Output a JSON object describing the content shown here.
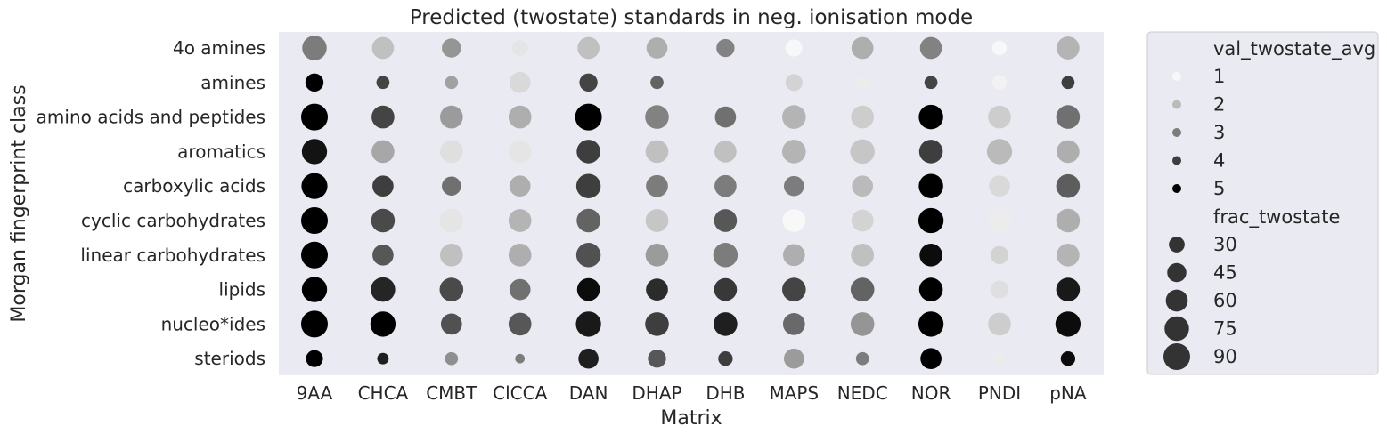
{
  "chart_data": {
    "type": "scatter",
    "title": "Predicted (twostate) standards in neg. ionisation mode",
    "xlabel": "Matrix",
    "ylabel": "Morgan fingerprint class",
    "x_categories": [
      "9AA",
      "CHCA",
      "CMBT",
      "ClCCA",
      "DAN",
      "DHAP",
      "DHB",
      "MAPS",
      "NEDC",
      "NOR",
      "PNDI",
      "pNA"
    ],
    "y_categories": [
      "4o amines",
      "amines",
      "amino acids and peptides",
      "aromatics",
      "carboxylic acids",
      "cyclic carbohydrates",
      "linear carbohydrates",
      "lipids",
      "nucleo*ides",
      "steriods"
    ],
    "grid": false,
    "legend_position": "outside-right",
    "colors": {
      "background": "#eaeaf2",
      "legend_background": "#eaeaf2",
      "legend_border": "#cccccc",
      "min_color": "#f7f7f7",
      "max_color": "#000000"
    },
    "color_series": {
      "name": "val_twostate_avg",
      "legend_values": [
        1,
        2,
        3,
        4,
        5
      ],
      "values": [
        [
          3.0,
          1.9,
          2.6,
          1.3,
          1.9,
          2.2,
          2.9,
          1.0,
          2.2,
          2.9,
          1.0,
          2.1
        ],
        [
          5.0,
          3.9,
          2.4,
          1.5,
          3.9,
          3.4,
          1.0,
          1.6,
          1.2,
          3.9,
          1.1,
          4.0
        ],
        [
          5.0,
          3.9,
          2.5,
          2.2,
          5.0,
          2.9,
          3.2,
          2.1,
          1.7,
          5.0,
          1.7,
          3.2
        ],
        [
          4.7,
          2.3,
          1.4,
          1.3,
          4.0,
          1.9,
          1.9,
          2.1,
          1.8,
          4.0,
          2.0,
          2.2
        ],
        [
          5.0,
          4.0,
          3.2,
          2.2,
          4.0,
          3.0,
          3.0,
          3.0,
          2.0,
          5.0,
          1.5,
          3.5
        ],
        [
          5.0,
          3.8,
          1.3,
          2.1,
          3.4,
          1.8,
          3.6,
          1.0,
          1.6,
          5.0,
          1.2,
          2.2
        ],
        [
          5.0,
          3.6,
          1.9,
          2.2,
          3.7,
          2.5,
          3.0,
          2.2,
          1.9,
          4.8,
          1.6,
          2.1
        ],
        [
          5.0,
          4.4,
          3.8,
          3.2,
          4.8,
          4.3,
          4.1,
          3.9,
          3.4,
          5.0,
          1.4,
          4.6
        ],
        [
          5.0,
          5.0,
          3.7,
          3.6,
          4.6,
          4.0,
          4.5,
          3.3,
          2.6,
          5.0,
          1.7,
          4.8
        ],
        [
          5.0,
          4.5,
          2.7,
          3.0,
          4.5,
          3.6,
          4.0,
          2.5,
          3.0,
          5.0,
          1.2,
          4.8
        ]
      ]
    },
    "size_series": {
      "name": "frac_twostate",
      "legend_values": [
        30,
        45,
        60,
        75,
        90
      ],
      "values": [
        [
          75,
          60,
          45,
          30,
          60,
          55,
          40,
          35,
          60,
          60,
          25,
          65
        ],
        [
          40,
          20,
          20,
          55,
          40,
          20,
          0,
          35,
          25,
          20,
          25,
          20
        ],
        [
          90,
          65,
          65,
          65,
          90,
          70,
          55,
          70,
          65,
          75,
          65,
          70
        ],
        [
          80,
          65,
          65,
          65,
          70,
          65,
          60,
          70,
          75,
          70,
          80,
          65
        ],
        [
          85,
          55,
          45,
          55,
          75,
          60,
          60,
          50,
          55,
          75,
          55,
          70
        ],
        [
          90,
          70,
          70,
          65,
          70,
          65,
          65,
          65,
          60,
          80,
          65,
          70
        ],
        [
          90,
          55,
          65,
          65,
          75,
          65,
          75,
          60,
          65,
          65,
          40,
          65
        ],
        [
          80,
          75,
          70,
          55,
          65,
          60,
          65,
          70,
          70,
          70,
          40,
          70
        ],
        [
          90,
          80,
          55,
          65,
          80,
          70,
          70,
          60,
          70,
          80,
          65,
          80
        ],
        [
          35,
          15,
          20,
          10,
          50,
          40,
          25,
          50,
          20,
          55,
          15,
          25
        ]
      ]
    }
  }
}
